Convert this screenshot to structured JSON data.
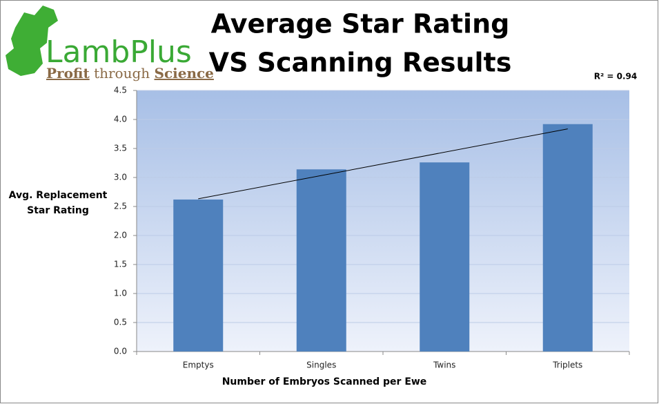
{
  "logo": {
    "name": "LambPlus",
    "tagline": [
      "Profit",
      "through",
      "Science"
    ]
  },
  "chart_data": {
    "type": "bar",
    "title": [
      "Average Star Rating",
      "VS Scanning Results"
    ],
    "ylabel": [
      "Avg. Replacement",
      "Star Rating"
    ],
    "xlabel": "Number of Embryos Scanned per Ewe",
    "annotation": "R² = 0.94",
    "categories": [
      "Emptys",
      "Singles",
      "Twins",
      "Triplets"
    ],
    "values": [
      2.62,
      3.14,
      3.26,
      3.92
    ],
    "color": "#4f81bd",
    "trendline": true,
    "ylim": [
      0,
      4.5
    ],
    "yticks": [
      {
        "value": 0,
        "label": "0.0"
      },
      0.5,
      {
        "value": 1,
        "label": "1.0"
      },
      1.5,
      {
        "value": 2,
        "label": "2.0"
      },
      2.5,
      {
        "value": 3,
        "label": "3.0"
      },
      3.5,
      {
        "value": 4,
        "label": "4.0"
      },
      4.5
    ],
    "grid": true
  }
}
